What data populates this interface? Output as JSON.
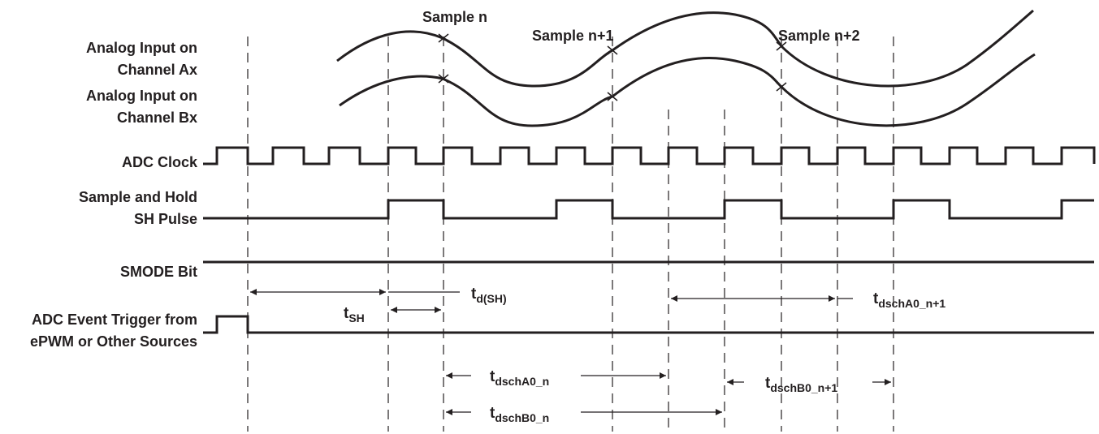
{
  "signals": {
    "analog_a": [
      "Analog Input on",
      "Channel Ax"
    ],
    "analog_b": [
      "Analog Input on",
      "Channel Bx"
    ],
    "adc_clock": "ADC Clock",
    "sh_pulse": [
      "Sample and Hold",
      "SH Pulse"
    ],
    "smode": "SMODE Bit",
    "trigger": [
      "ADC Event Trigger from",
      "ePWM or Other Sources"
    ]
  },
  "samples": [
    "Sample n",
    "Sample n+1",
    "Sample n+2"
  ],
  "timings": [
    {
      "id": "td_sh",
      "base": "t",
      "sub": "d(SH)"
    },
    {
      "id": "t_sh",
      "base": "t",
      "sub": "SH"
    },
    {
      "id": "t_dscha0_n1",
      "base": "t",
      "sub": "dschA0_n+1"
    },
    {
      "id": "t_dscha0_n",
      "base": "t",
      "sub": "dschA0_n"
    },
    {
      "id": "t_dschb0_n",
      "base": "t",
      "sub": "dschB0_n"
    },
    {
      "id": "t_dschb0_n1",
      "base": "t",
      "sub": "dschB0_n+1"
    }
  ],
  "colors": {
    "ink": "#231f20",
    "background": "#ffffff"
  }
}
